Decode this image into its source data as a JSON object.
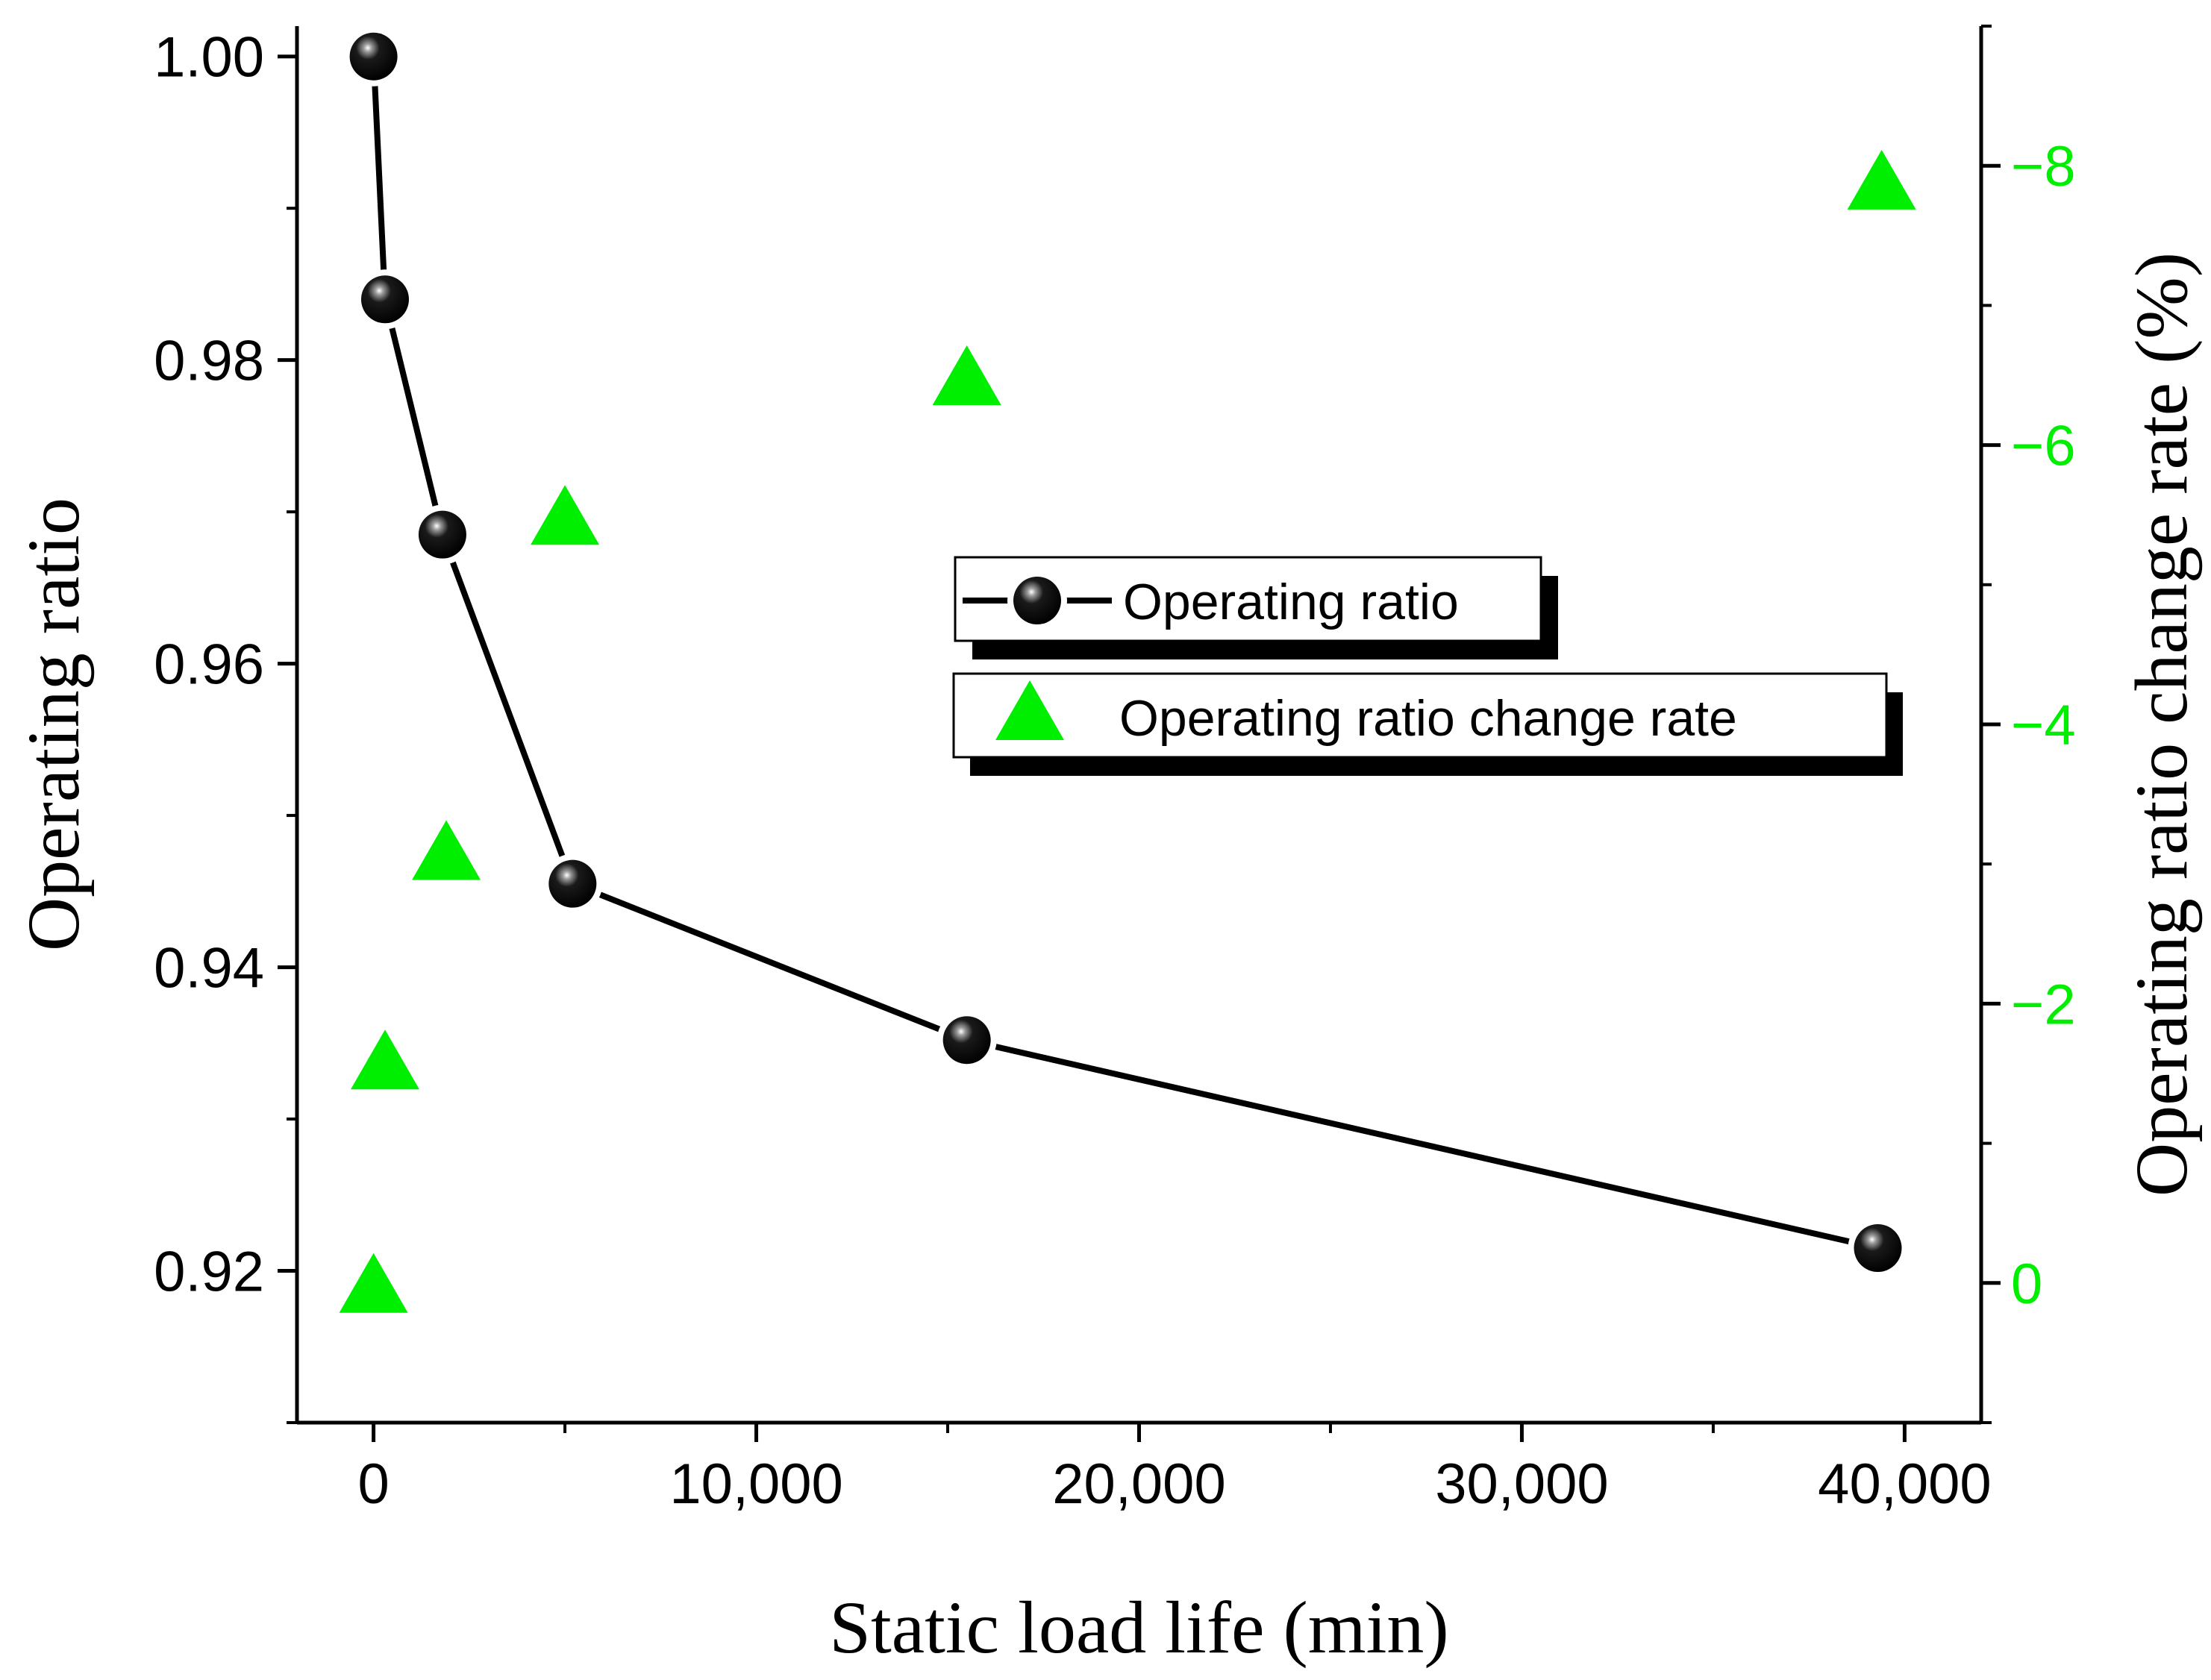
{
  "chart_data": {
    "type": "line+scatter (dual y-axis)",
    "title": "",
    "xlabel": "Static load life (min)",
    "ylabel_left": "Operating ratio",
    "ylabel_right": "Operating ratio change rate (%)",
    "xlim": [
      -2000,
      42000
    ],
    "ylim_left": [
      0.91,
      1.002
    ],
    "ylim_right": [
      1,
      -9
    ],
    "right_axis_reversed": true,
    "x_ticks": [
      0,
      10000,
      20000,
      30000,
      40000
    ],
    "x_tick_labels": [
      "0",
      "10,000",
      "20,000",
      "30,000",
      "40,000"
    ],
    "y_left_ticks": [
      1.0,
      0.98,
      0.96,
      0.94,
      0.92
    ],
    "y_left_tick_labels": [
      "1.00",
      "0.98",
      "0.96",
      "0.94",
      "0.92"
    ],
    "y_right_ticks": [
      -8,
      -6,
      -4,
      -2,
      0
    ],
    "y_right_tick_labels": [
      "−8",
      "−6",
      "−4",
      "−2",
      "0"
    ],
    "series": [
      {
        "name": "Operating ratio",
        "axis": "left",
        "style": "line+sphere markers",
        "color": "#000000",
        "x": [
          0,
          300,
          1800,
          5200,
          15500,
          39300
        ],
        "y": [
          1.0,
          0.984,
          0.9685,
          0.9455,
          0.9352,
          0.9215
        ]
      },
      {
        "name": "Operating ratio change rate",
        "axis": "right",
        "style": "triangle markers",
        "color": "#00ee00",
        "x": [
          0,
          300,
          1900,
          5000,
          15500,
          39400
        ],
        "y": [
          0.0,
          -1.6,
          -3.1,
          -5.5,
          -6.5,
          -7.9
        ]
      }
    ],
    "legend": {
      "placement": "center-right",
      "entries": [
        "Operating ratio",
        "Operating ratio change rate"
      ]
    },
    "grid": false
  }
}
